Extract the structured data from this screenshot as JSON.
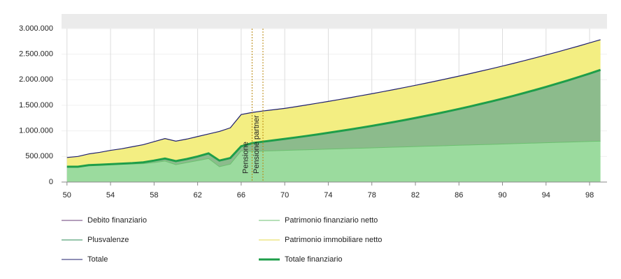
{
  "chart_data": {
    "type": "stacked_area",
    "x": [
      50,
      51,
      52,
      53,
      54,
      55,
      56,
      57,
      58,
      59,
      60,
      61,
      62,
      63,
      64,
      65,
      66,
      67,
      68,
      69,
      70,
      71,
      72,
      73,
      74,
      75,
      76,
      77,
      78,
      79,
      80,
      81,
      82,
      83,
      84,
      85,
      86,
      87,
      88,
      89,
      90,
      91,
      92,
      93,
      94,
      95,
      96,
      97,
      98,
      99
    ],
    "xlim": [
      49.5,
      99.6
    ],
    "xticks": [
      50,
      54,
      58,
      62,
      66,
      70,
      74,
      78,
      82,
      86,
      90,
      94,
      98
    ],
    "ylim": [
      0,
      3000000
    ],
    "yticks": [
      0,
      {
        "value": 500000,
        "label": "500.000"
      },
      {
        "value": 1000000,
        "label": "1.000.000"
      },
      {
        "value": 1500000,
        "label": "1.500.000"
      },
      {
        "value": 2000000,
        "label": "2.000.000"
      },
      {
        "value": 2500000,
        "label": "2.500.000"
      },
      {
        "value": 3000000,
        "label": "3.000.000"
      }
    ],
    "grid": true,
    "series": [
      {
        "name": "Debito finanziario",
        "color": "#6a3d7a"
      },
      {
        "name": "Patrimonio finanziario netto",
        "color": "#6cc070",
        "fill": "#9bdb9e",
        "values": [
          300000,
          300000,
          330000,
          340000,
          345000,
          350000,
          355000,
          360000,
          380000,
          410000,
          340000,
          380000,
          420000,
          460000,
          300000,
          350000,
          610000,
          600000,
          606000,
          612000,
          619000,
          625000,
          631000,
          637000,
          644000,
          650000,
          656000,
          662000,
          669000,
          675000,
          681000,
          687000,
          694000,
          700000,
          706000,
          712000,
          719000,
          725000,
          731000,
          737000,
          744000,
          750000,
          756000,
          762000,
          769000,
          775000,
          781000,
          787000,
          794000,
          800000
        ]
      },
      {
        "name": "Plusvalenze",
        "color": "#2e8b57",
        "fill": "#8cbb8c",
        "values": [
          0,
          0,
          0,
          0,
          5000,
          10000,
          15000,
          25000,
          40000,
          50000,
          70000,
          70000,
          80000,
          100000,
          120000,
          120000,
          90000,
          160000,
          184000,
          204000,
          225000,
          247000,
          270000,
          294000,
          319000,
          345000,
          372000,
          401000,
          429000,
          460000,
          492000,
          525000,
          559000,
          595000,
          632000,
          671000,
          710000,
          752000,
          796000,
          841000,
          887000,
          935000,
          986000,
          1038000,
          1091000,
          1148000,
          1206000,
          1267000,
          1328000,
          1393000
        ]
      },
      {
        "name": "Patrimonio immobiliare netto",
        "color": "#e3d94a",
        "fill": "#f3ee82",
        "values": [
          180000,
          200000,
          220000,
          240000,
          270000,
          290000,
          320000,
          345000,
          370000,
          390000,
          390000,
          390000,
          390000,
          380000,
          570000,
          590000,
          620000,
          600000,
          600000,
          599000,
          596000,
          601000,
          606000,
          611000,
          614000,
          618000,
          622000,
          625000,
          629000,
          632000,
          634000,
          637000,
          638000,
          640000,
          641000,
          642000,
          642000,
          642000,
          641000,
          639000,
          637000,
          635000,
          632000,
          628000,
          624000,
          618000,
          613000,
          605000,
          599000,
          590000
        ]
      },
      {
        "name": "Totale",
        "color": "#1f1f6e"
      },
      {
        "name": "Totale finanziario",
        "color": "#1e9e4a"
      }
    ],
    "annotations": [
      {
        "x": 67,
        "text": "Pensione",
        "color": "#b8860b"
      },
      {
        "x": 68,
        "text": "Pensione partner",
        "color": "#b8860b"
      }
    ]
  }
}
